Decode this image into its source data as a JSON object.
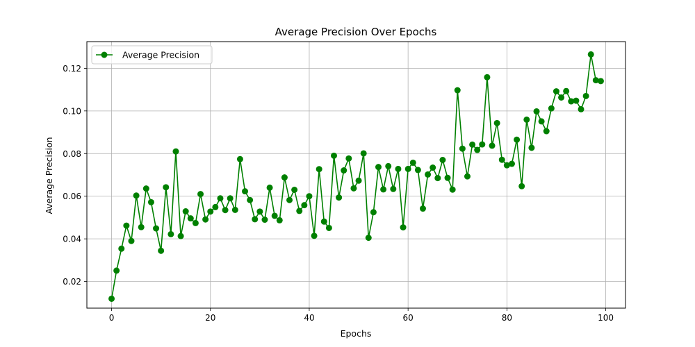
{
  "chart_data": {
    "type": "line",
    "title": "Average Precision Over Epochs",
    "xlabel": "Epochs",
    "ylabel": "Average Precision",
    "xlim": [
      -5,
      104
    ],
    "ylim": [
      0.0075,
      0.1325
    ],
    "xticks": [
      0,
      20,
      40,
      60,
      80,
      100
    ],
    "yticks": [
      0.02,
      0.04,
      0.06,
      0.08,
      0.1,
      0.12
    ],
    "ytick_labels": [
      "0.02",
      "0.04",
      "0.06",
      "0.08",
      "0.10",
      "0.12"
    ],
    "grid": true,
    "legend_position": "top-left",
    "color": "#008000",
    "series": [
      {
        "name": "Average Precision",
        "x": [
          0,
          1,
          2,
          3,
          4,
          5,
          6,
          7,
          8,
          9,
          10,
          11,
          12,
          13,
          14,
          15,
          16,
          17,
          18,
          19,
          20,
          21,
          22,
          23,
          24,
          25,
          26,
          27,
          28,
          29,
          30,
          31,
          32,
          33,
          34,
          35,
          36,
          37,
          38,
          39,
          40,
          41,
          42,
          43,
          44,
          45,
          46,
          47,
          48,
          49,
          50,
          51,
          52,
          53,
          54,
          55,
          56,
          57,
          58,
          59,
          60,
          61,
          62,
          63,
          64,
          65,
          66,
          67,
          68,
          69,
          70,
          71,
          72,
          73,
          74,
          75,
          76,
          77,
          78,
          79,
          80,
          81,
          82,
          83,
          84,
          85,
          86,
          87,
          88,
          89,
          90,
          91,
          92,
          93,
          94,
          95,
          96,
          97,
          98,
          99
        ],
        "values": [
          0.0119,
          0.0251,
          0.0354,
          0.0462,
          0.039,
          0.0603,
          0.0455,
          0.0636,
          0.0572,
          0.0449,
          0.0344,
          0.0642,
          0.0422,
          0.081,
          0.0413,
          0.0529,
          0.0496,
          0.0474,
          0.061,
          0.0491,
          0.0528,
          0.0549,
          0.059,
          0.0535,
          0.059,
          0.0536,
          0.0774,
          0.0623,
          0.0582,
          0.0492,
          0.0528,
          0.049,
          0.064,
          0.0508,
          0.0487,
          0.0688,
          0.0582,
          0.063,
          0.0531,
          0.0558,
          0.06,
          0.0414,
          0.0727,
          0.0481,
          0.0451,
          0.079,
          0.0594,
          0.0721,
          0.0777,
          0.0637,
          0.0673,
          0.0801,
          0.0405,
          0.0525,
          0.0737,
          0.0632,
          0.0741,
          0.0634,
          0.0728,
          0.0454,
          0.0728,
          0.0757,
          0.0723,
          0.0542,
          0.0702,
          0.0734,
          0.0685,
          0.077,
          0.0686,
          0.0631,
          0.1097,
          0.0823,
          0.0693,
          0.0842,
          0.0817,
          0.0843,
          0.1158,
          0.0837,
          0.0943,
          0.0771,
          0.0745,
          0.0752,
          0.0865,
          0.0647,
          0.0959,
          0.0827,
          0.0998,
          0.0951,
          0.0905,
          0.1012,
          0.1092,
          0.1063,
          0.1093,
          0.1045,
          0.1048,
          0.1008,
          0.107,
          0.1265,
          0.1144,
          0.114
        ]
      }
    ]
  }
}
